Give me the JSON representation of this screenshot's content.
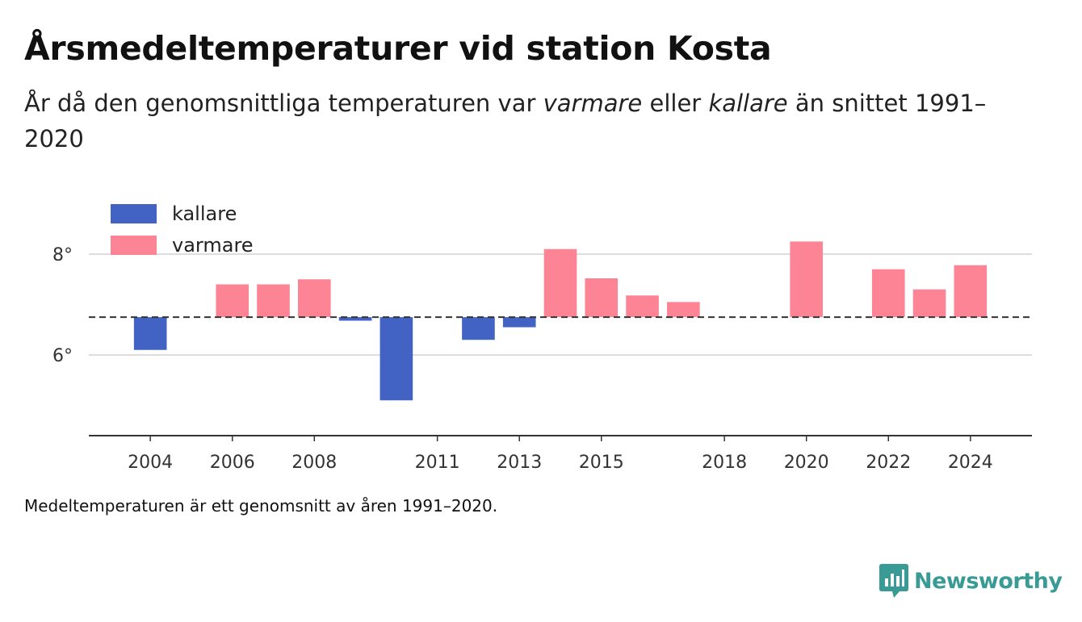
{
  "title": "Årsmedeltemperaturer vid station Kosta",
  "subtitle": {
    "part1": "År då den genomsnittliga temperaturen var ",
    "warm": "varmare",
    "part2": " eller ",
    "cold": "kallare",
    "part3": " än snittet 1991–2020"
  },
  "footnote": "Medeltemperaturen är ett genomsnitt av åren 1991–2020.",
  "brand": {
    "name": "Newsworthy",
    "color": "#3a9a96"
  },
  "colors": {
    "cold": "#4263c3",
    "warm": "#fd8494",
    "grid": "#dddddd",
    "axis": "#333333",
    "reference": "#333333"
  },
  "chart_data": {
    "type": "bar",
    "baseline": 6.75,
    "legend": [
      {
        "name": "kallare",
        "key": "cold"
      },
      {
        "name": "varmare",
        "key": "warm"
      }
    ],
    "legend_placement": "top-left",
    "grid": true,
    "ylim": [
      4.4,
      8.4
    ],
    "y_ticks": [
      {
        "value": 6,
        "label": "6°"
      },
      {
        "value": 8,
        "label": "8°"
      }
    ],
    "xlim": [
      2002.5,
      2025.5
    ],
    "x_ticks": [
      2004,
      2006,
      2008,
      2011,
      2013,
      2015,
      2018,
      2020,
      2022,
      2024
    ],
    "points": [
      {
        "year": 2004,
        "value": 6.1
      },
      {
        "year": 2006,
        "value": 7.4
      },
      {
        "year": 2007,
        "value": 7.4
      },
      {
        "year": 2008,
        "value": 7.5
      },
      {
        "year": 2009,
        "value": 6.68
      },
      {
        "year": 2010,
        "value": 5.1
      },
      {
        "year": 2012,
        "value": 6.3
      },
      {
        "year": 2013,
        "value": 6.55
      },
      {
        "year": 2014,
        "value": 8.1
      },
      {
        "year": 2015,
        "value": 7.52
      },
      {
        "year": 2016,
        "value": 7.18
      },
      {
        "year": 2017,
        "value": 7.05
      },
      {
        "year": 2020,
        "value": 8.25
      },
      {
        "year": 2022,
        "value": 7.7
      },
      {
        "year": 2023,
        "value": 7.3
      },
      {
        "year": 2024,
        "value": 7.78
      }
    ]
  }
}
